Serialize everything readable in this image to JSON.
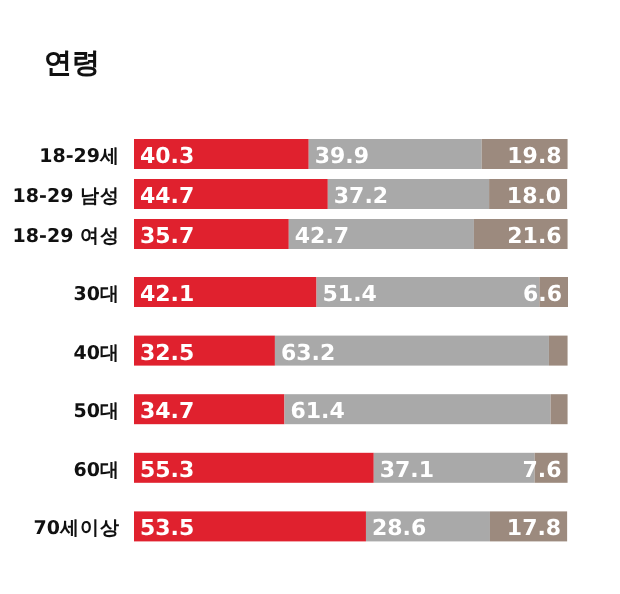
{
  "chart_data": {
    "type": "bar",
    "title": "연령",
    "orientation": "horizontal",
    "stacked": true,
    "categories": [
      "18-29세",
      "18-29 남성",
      "18-29 여성",
      "30대",
      "40대",
      "50대",
      "60대",
      "70세이상"
    ],
    "series": [
      {
        "color": "#e0212e",
        "values": [
          40.3,
          44.7,
          35.7,
          42.1,
          32.5,
          34.7,
          55.3,
          53.5
        ],
        "value_labels": [
          "40.3",
          "44.7",
          "35.7",
          "42.1",
          "32.5",
          "34.7",
          "55.3",
          "53.5"
        ]
      },
      {
        "color": "#a9a9a9",
        "values": [
          39.9,
          37.2,
          42.7,
          51.4,
          63.2,
          61.4,
          37.1,
          28.6
        ],
        "value_labels": [
          "39.9",
          "37.2",
          "42.7",
          "51.4",
          "63.2",
          "61.4",
          "37.1",
          "28.6"
        ]
      },
      {
        "color": "#9c8a7e",
        "values": [
          19.8,
          18.0,
          21.6,
          6.6,
          4.3,
          3.9,
          7.6,
          17.8
        ],
        "value_labels": [
          "19.8",
          "18.0",
          "21.6",
          "6.6",
          null,
          null,
          "7.6",
          "17.8"
        ]
      }
    ]
  }
}
